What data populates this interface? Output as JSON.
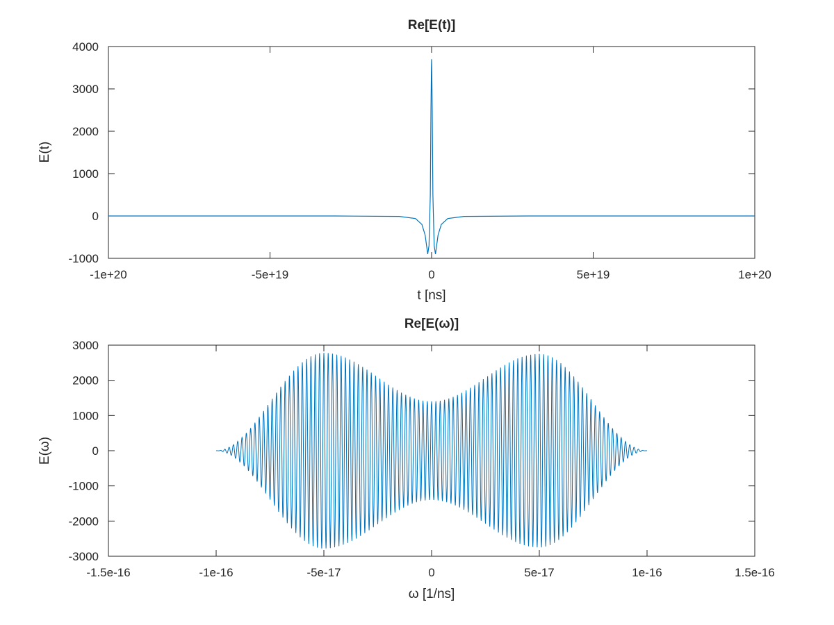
{
  "chart_data": [
    {
      "type": "line",
      "title": "Re[E(t)]",
      "xlabel": "t [ns]",
      "ylabel": "E(t)",
      "xlim": [
        -1e+20,
        1e+20
      ],
      "ylim": [
        -1000,
        4000
      ],
      "xticks": [
        -1e+20,
        -5e+19,
        0,
        5e+19,
        1e+20
      ],
      "xtick_labels": [
        "-1e+20",
        "-5e+19",
        "0",
        "5e+19",
        "1e+20"
      ],
      "yticks": [
        -1000,
        0,
        1000,
        2000,
        3000,
        4000
      ],
      "ytick_labels": [
        "-1000",
        "0",
        "1000",
        "2000",
        "3000",
        "4000"
      ],
      "grid": false,
      "line_color": "#0072bd",
      "series": [
        {
          "x": [
            -1e+20,
            -3e+19,
            -1e+19,
            -5e+18,
            -3e+18,
            -2e+18,
            -1.2e+18,
            -8e+17,
            -4e+17,
            -2e+17,
            -5e+16,
            0,
            5e+16,
            2e+17,
            4e+17,
            8e+17,
            1.2e+18,
            2e+18,
            3e+18,
            5e+18,
            1e+19,
            3e+19,
            1e+20
          ],
          "values": [
            0,
            0,
            -10,
            -60,
            -200,
            -450,
            -900,
            -700,
            500,
            2500,
            3500,
            3700,
            3500,
            2500,
            500,
            -700,
            -900,
            -450,
            -200,
            -60,
            -10,
            0,
            0
          ]
        }
      ]
    },
    {
      "type": "line",
      "title": "Re[E(ω)]",
      "xlabel": "ω [1/ns]",
      "ylabel": "E(ω)",
      "xlim": [
        -1.5e-16,
        1.5e-16
      ],
      "ylim": [
        -3000,
        3000
      ],
      "xticks": [
        -1.5e-16,
        -1e-16,
        -5e-17,
        0,
        5e-17,
        1e-16,
        1.5e-16
      ],
      "xtick_labels": [
        "-1.5e-16",
        "-1e-16",
        "-5e-17",
        "0",
        "5e-17",
        "1e-16",
        "1.5e-16"
      ],
      "yticks": [
        -3000,
        -2000,
        -1000,
        0,
        1000,
        2000,
        3000
      ],
      "ytick_labels": [
        "-3000",
        "-2000",
        "-1000",
        "0",
        "1000",
        "2000",
        "3000"
      ],
      "grid": false,
      "line_color": "#0072bd",
      "series": [
        {
          "x_range": [
            -1e-16,
            1e-16
          ],
          "oscillation_cycles": 100,
          "envelope_peaks": [
            {
              "x": -5e-17,
              "amplitude": 2780
            },
            {
              "x": 0,
              "amplitude": 1400
            },
            {
              "x": 5e-17,
              "amplitude": 2750
            }
          ],
          "endpoint_amplitude": 0
        }
      ]
    }
  ]
}
